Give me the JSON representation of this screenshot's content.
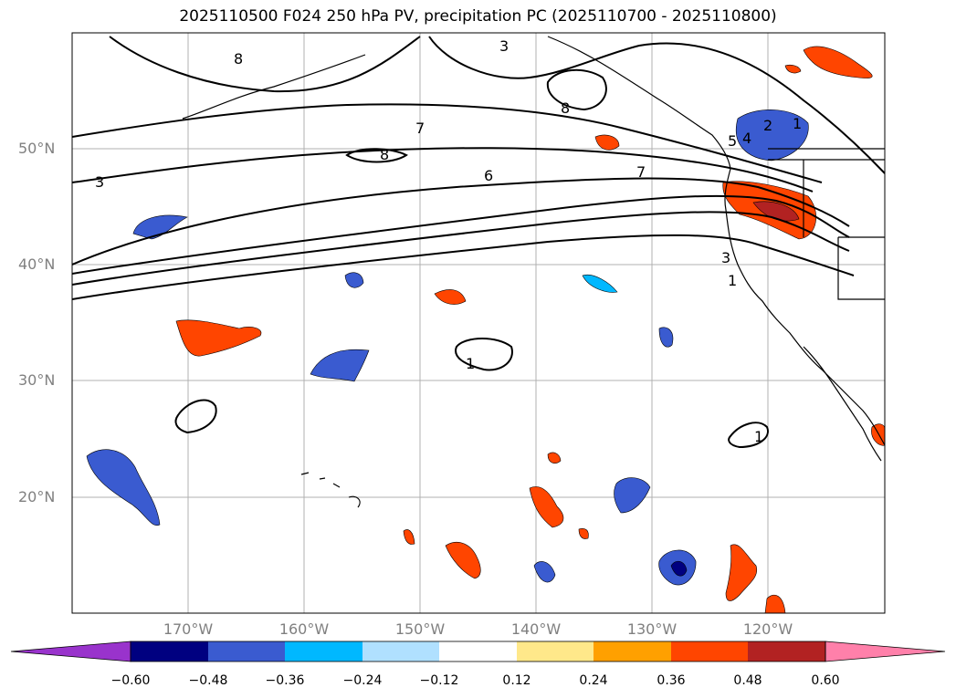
{
  "title": "2025110500 F024 250 hPa PV, precipitation PC (2025110700 - 2025110800)",
  "lat_labels": [
    "50°N",
    "40°N",
    "30°N",
    "20°N"
  ],
  "lon_labels": [
    "170°W",
    "160°W",
    "150°W",
    "140°W",
    "130°W",
    "120°W"
  ],
  "colorbar": {
    "extend": "both",
    "colors": [
      "#9933cc",
      "#000080",
      "#3a5bd0",
      "#00b8ff",
      "#b0e0ff",
      "#ffffff",
      "#ffe88a",
      "#ffa000",
      "#ff4500",
      "#b22222",
      "#ff80aa"
    ],
    "tick_labels": [
      "−0.60",
      "−0.48",
      "−0.36",
      "−0.24",
      "−0.12",
      "0.12",
      "0.24",
      "0.36",
      "0.48",
      "0.60"
    ]
  },
  "pv_contour_labels": [
    "8",
    "3",
    "8",
    "7",
    "8",
    "6",
    "7",
    "3",
    "2",
    "1",
    "4",
    "5",
    "3",
    "1",
    "1",
    "1"
  ],
  "gridlines": true
}
